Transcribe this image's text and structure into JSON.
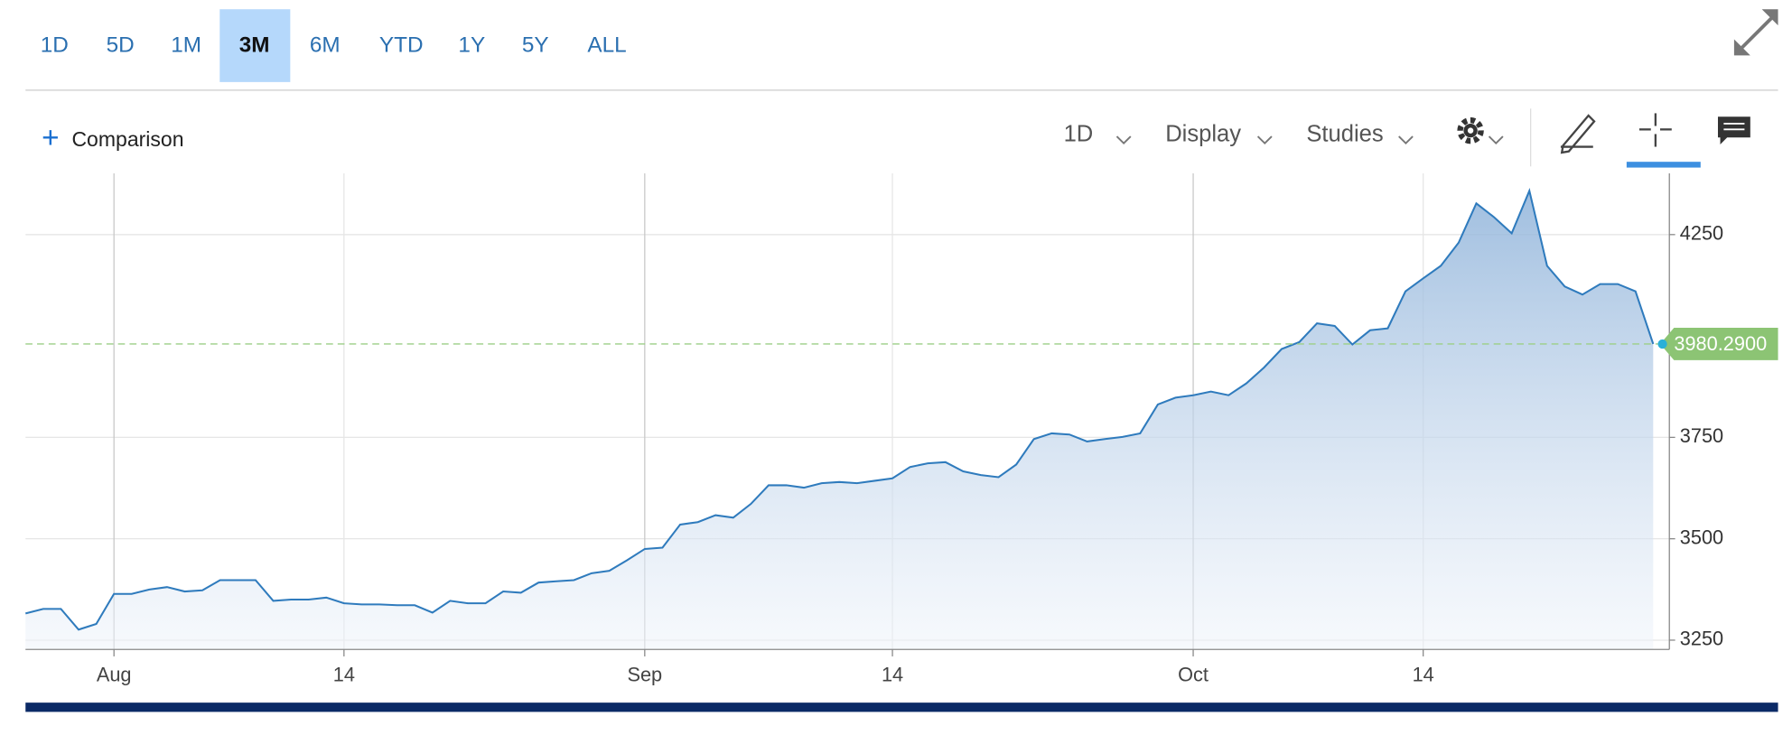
{
  "toolbar": {
    "ranges": [
      "1D",
      "5D",
      "1M",
      "3M",
      "6M",
      "YTD",
      "1Y",
      "5Y",
      "ALL"
    ],
    "selected": 3
  },
  "controls": {
    "comparison": "Comparison",
    "interval": "1D",
    "display": "Display",
    "studies": "Studies"
  },
  "chart_data": {
    "type": "area",
    "color": "#2f7bbd",
    "categories": [
      null,
      null,
      null,
      null,
      null,
      "Aug",
      null,
      null,
      null,
      null,
      null,
      null,
      null,
      null,
      null,
      null,
      null,
      null,
      "14",
      null,
      null,
      null,
      null,
      null,
      null,
      null,
      null,
      null,
      null,
      null,
      null,
      null,
      null,
      null,
      null,
      "Sep",
      null,
      null,
      null,
      null,
      null,
      null,
      null,
      null,
      null,
      null,
      null,
      null,
      null,
      "14",
      null,
      null,
      null,
      null,
      null,
      null,
      null,
      null,
      null,
      null,
      null,
      null,
      null,
      null,
      null,
      null,
      "Oct",
      null,
      null,
      null,
      null,
      null,
      null,
      null,
      null,
      null,
      null,
      null,
      null,
      "14",
      null,
      null,
      null,
      null,
      null,
      null,
      null,
      null,
      null,
      null,
      null,
      null,
      null
    ],
    "values": [
      3316,
      3327,
      3327,
      3276,
      3290,
      3364,
      3364,
      3375,
      3381,
      3370,
      3373,
      3398,
      3398,
      3398,
      3347,
      3350,
      3350,
      3355,
      3341,
      3338,
      3338,
      3336,
      3336,
      3318,
      3347,
      3341,
      3341,
      3370,
      3367,
      3392,
      3395,
      3398,
      3415,
      3421,
      3447,
      3475,
      3478,
      3535,
      3541,
      3558,
      3552,
      3586,
      3632,
      3632,
      3626,
      3637,
      3640,
      3637,
      3643,
      3649,
      3677,
      3686,
      3689,
      3666,
      3657,
      3652,
      3683,
      3746,
      3760,
      3757,
      3740,
      3746,
      3751,
      3760,
      3831,
      3848,
      3854,
      3863,
      3854,
      3883,
      3922,
      3968,
      3985,
      4031,
      4025,
      3979,
      4014,
      4019,
      4110,
      4142,
      4173,
      4230,
      4327,
      4293,
      4253,
      4358,
      4173,
      4122,
      4102,
      4128,
      4128,
      4110,
      3980.29
    ],
    "ylim": [
      3227,
      4401
    ],
    "yticks": [
      3250,
      3500,
      3750,
      4250
    ],
    "grid": true,
    "last_price": {
      "value": 3980.29,
      "label": "3980.2900"
    }
  }
}
